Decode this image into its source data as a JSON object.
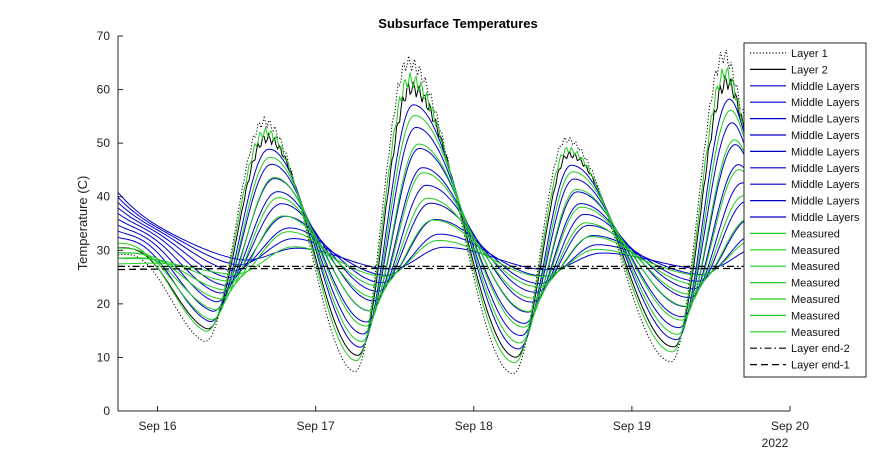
{
  "chart_data": {
    "type": "line",
    "title": "Subsurface Temperatures",
    "xlabel": "",
    "ylabel": "Temperature (C)",
    "x_range": [
      "2022-09-15 18:00",
      "2022-09-20 00:00"
    ],
    "ylim": [
      0,
      70
    ],
    "grid": false,
    "legend_position": "top-right",
    "x_ticks": [
      {
        "date": "2022-09-16",
        "label": "Sep 16"
      },
      {
        "date": "2022-09-17",
        "label": "Sep 17"
      },
      {
        "date": "2022-09-18",
        "label": "Sep 18"
      },
      {
        "date": "2022-09-19",
        "label": "Sep 19"
      },
      {
        "date": "2022-09-20",
        "label": "Sep 20"
      }
    ],
    "x_secondary_label": "2022",
    "y_ticks": [
      0,
      10,
      20,
      30,
      40,
      50,
      60,
      70
    ],
    "time_span": [
      "2022-09-15 18:00",
      "2022-09-19 18:00"
    ],
    "surface_peaks": [
      {
        "time": "2022-09-16 16:00",
        "value": 53
      },
      {
        "time": "2022-09-17 14:00",
        "value": 61
      },
      {
        "time": "2022-09-18 14:00",
        "value": 48
      },
      {
        "time": "2022-09-19 14:00",
        "value": 62
      }
    ],
    "surface_troughs": [
      {
        "time": "2022-09-15 18:00",
        "value": 30
      },
      {
        "time": "2022-09-16 07:00",
        "value": 10
      },
      {
        "time": "2022-09-17 06:00",
        "value": 9
      },
      {
        "time": "2022-09-18 06:00",
        "value": 9
      },
      {
        "time": "2022-09-19 06:00",
        "value": 11
      },
      {
        "time": "2022-09-19 18:00",
        "value": 50
      }
    ],
    "series": [
      {
        "name": "Layer 1",
        "color": "#000000",
        "dash": "dotted",
        "amplitude": 1.12,
        "offset": 0.3,
        "lag_hours": 0.0,
        "initial": 29
      },
      {
        "name": "Layer 2",
        "color": "#000000",
        "dash": "solid",
        "amplitude": 0.97,
        "offset": 1.2,
        "lag_hours": 0.4,
        "initial": 30
      },
      {
        "name": "Middle Layers",
        "color": "#0000cc",
        "dash": "solid",
        "amplitude": 0.88,
        "offset": 1.0,
        "lag_hours": 0.8,
        "initial": 32
      },
      {
        "name": "Middle Layers",
        "color": "#0000cc",
        "dash": "solid",
        "amplitude": 0.75,
        "offset": 1.4,
        "lag_hours": 1.2,
        "initial": 33
      },
      {
        "name": "Middle Layers",
        "color": "#0000cc",
        "dash": "solid",
        "amplitude": 0.63,
        "offset": 1.7,
        "lag_hours": 1.7,
        "initial": 34
      },
      {
        "name": "Middle Layers",
        "color": "#0000cc",
        "dash": "solid",
        "amplitude": 0.52,
        "offset": 2.0,
        "lag_hours": 2.2,
        "initial": 35
      },
      {
        "name": "Middle Layers",
        "color": "#0000cc",
        "dash": "solid",
        "amplitude": 0.42,
        "offset": 2.2,
        "lag_hours": 2.8,
        "initial": 36
      },
      {
        "name": "Middle Layers",
        "color": "#0000cc",
        "dash": "solid",
        "amplitude": 0.32,
        "offset": 2.3,
        "lag_hours": 3.4,
        "initial": 37
      },
      {
        "name": "Middle Layers",
        "color": "#0000cc",
        "dash": "solid",
        "amplitude": 0.23,
        "offset": 2.3,
        "lag_hours": 4.1,
        "initial": 38
      },
      {
        "name": "Middle Layers",
        "color": "#0000cc",
        "dash": "solid",
        "amplitude": 0.15,
        "offset": 2.2,
        "lag_hours": 4.8,
        "initial": 39
      },
      {
        "name": "Middle Layers",
        "color": "#0000cc",
        "dash": "solid",
        "amplitude": 0.08,
        "offset": 2.0,
        "lag_hours": 5.5,
        "initial": 40
      },
      {
        "name": "Measured",
        "color": "#22cc22",
        "dash": "solid",
        "amplitude": 1.02,
        "offset": 0.9,
        "lag_hours": 0.2,
        "initial": 31
      },
      {
        "name": "Measured",
        "color": "#22cc22",
        "dash": "solid",
        "amplitude": 0.82,
        "offset": 1.1,
        "lag_hours": 1.0,
        "initial": 30
      },
      {
        "name": "Measured",
        "color": "#22cc22",
        "dash": "solid",
        "amplitude": 0.66,
        "offset": 1.3,
        "lag_hours": 1.6,
        "initial": 29
      },
      {
        "name": "Measured",
        "color": "#22cc22",
        "dash": "solid",
        "amplitude": 0.5,
        "offset": 1.4,
        "lag_hours": 2.3,
        "initial": 29
      },
      {
        "name": "Measured",
        "color": "#22cc22",
        "dash": "solid",
        "amplitude": 0.36,
        "offset": 1.4,
        "lag_hours": 3.0,
        "initial": 28
      },
      {
        "name": "Measured",
        "color": "#22cc22",
        "dash": "solid",
        "amplitude": 0.24,
        "offset": 1.3,
        "lag_hours": 3.8,
        "initial": 28
      },
      {
        "name": "Measured",
        "color": "#22cc22",
        "dash": "solid",
        "amplitude": 0.13,
        "offset": 1.1,
        "lag_hours": 4.6,
        "initial": 27
      },
      {
        "name": "Layer end-2",
        "color": "#000000",
        "dash": "dashdot",
        "amplitude": 0.0,
        "offset": 0.0,
        "lag_hours": 0.0,
        "initial": 27
      },
      {
        "name": "Layer end-1",
        "color": "#000000",
        "dash": "dashed",
        "amplitude": 0.0,
        "offset": -0.4,
        "lag_hours": 0.0,
        "initial": 26.8
      }
    ]
  }
}
